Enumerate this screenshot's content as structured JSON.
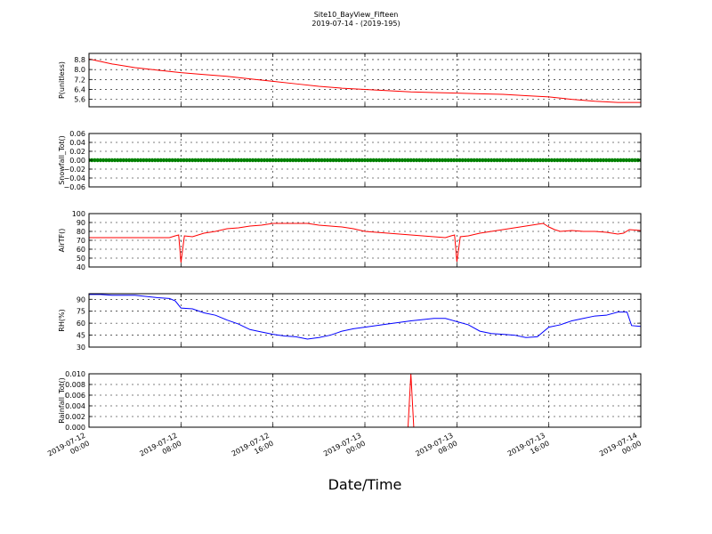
{
  "figure": {
    "title": "Site10_BayView_Fifteen",
    "subtitle": "2019-07-14 - (2019-195)",
    "xlabel": "Date/Time"
  },
  "x_ticks": [
    {
      "line1": "2019-07-12",
      "line2": "00:00",
      "hours": 0
    },
    {
      "line1": "2019-07-12",
      "line2": "08:00",
      "hours": 8
    },
    {
      "line1": "2019-07-12",
      "line2": "16:00",
      "hours": 16
    },
    {
      "line1": "2019-07-13",
      "line2": "00:00",
      "hours": 24
    },
    {
      "line1": "2019-07-13",
      "line2": "08:00",
      "hours": 32
    },
    {
      "line1": "2019-07-13",
      "line2": "16:00",
      "hours": 40
    },
    {
      "line1": "2019-07-14",
      "line2": "00:00",
      "hours": 48
    }
  ],
  "chart_data": [
    {
      "type": "line",
      "ylabel": "P(unitless)",
      "ylim": [
        5.0,
        9.3
      ],
      "yticks": [
        5.6,
        6.4,
        7.2,
        8.0,
        8.8
      ],
      "ytick_labels": [
        "5.6",
        "6.4",
        "7.2",
        "8.0",
        "8.8"
      ],
      "grid": true,
      "color": "#ff0000",
      "points": [
        [
          0,
          8.85
        ],
        [
          2,
          8.45
        ],
        [
          4,
          8.15
        ],
        [
          6,
          7.95
        ],
        [
          8,
          7.75
        ],
        [
          10,
          7.6
        ],
        [
          12,
          7.45
        ],
        [
          14,
          7.25
        ],
        [
          16,
          7.05
        ],
        [
          18,
          6.85
        ],
        [
          20,
          6.65
        ],
        [
          22,
          6.5
        ],
        [
          24,
          6.4
        ],
        [
          26,
          6.3
        ],
        [
          28,
          6.2
        ],
        [
          30,
          6.15
        ],
        [
          32,
          6.1
        ],
        [
          34,
          6.05
        ],
        [
          36,
          6.0
        ],
        [
          38,
          5.9
        ],
        [
          40,
          5.8
        ],
        [
          42,
          5.6
        ],
        [
          44,
          5.45
        ],
        [
          46,
          5.35
        ],
        [
          48,
          5.35
        ]
      ]
    },
    {
      "type": "scatter",
      "ylabel": "Snowfall_Tot()",
      "ylim": [
        -0.06,
        0.06
      ],
      "yticks": [
        -0.06,
        -0.04,
        -0.02,
        0.0,
        0.02,
        0.04,
        0.06
      ],
      "ytick_labels": [
        "−0.06",
        "−0.04",
        "−0.02",
        "0.00",
        "0.02",
        "0.04",
        "0.06"
      ],
      "grid": true,
      "color": "#008000",
      "constant_value": 0.0,
      "x_range": [
        0,
        48
      ]
    },
    {
      "type": "line",
      "ylabel": "AirTF()",
      "ylim": [
        40,
        100
      ],
      "yticks": [
        40,
        50,
        60,
        70,
        80,
        90,
        100
      ],
      "ytick_labels": [
        "40",
        "50",
        "60",
        "70",
        "80",
        "90",
        "100"
      ],
      "grid": true,
      "color": "#ff0000",
      "points": [
        [
          0,
          73
        ],
        [
          2,
          73
        ],
        [
          4,
          73
        ],
        [
          6,
          73
        ],
        [
          7,
          73
        ],
        [
          7.5,
          75
        ],
        [
          7.8,
          76
        ],
        [
          8.0,
          45
        ],
        [
          8.3,
          75
        ],
        [
          9,
          74
        ],
        [
          10,
          78
        ],
        [
          11,
          80
        ],
        [
          12,
          83
        ],
        [
          13,
          84
        ],
        [
          14,
          86
        ],
        [
          15,
          87
        ],
        [
          16,
          89
        ],
        [
          17,
          89
        ],
        [
          18,
          89
        ],
        [
          19,
          89
        ],
        [
          20,
          87
        ],
        [
          21,
          86
        ],
        [
          22,
          85
        ],
        [
          23,
          83
        ],
        [
          24,
          80
        ],
        [
          26,
          78
        ],
        [
          28,
          76
        ],
        [
          30,
          74
        ],
        [
          31,
          73
        ],
        [
          31.5,
          75
        ],
        [
          31.8,
          76
        ],
        [
          32.0,
          46
        ],
        [
          32.3,
          74
        ],
        [
          33,
          75
        ],
        [
          34,
          78
        ],
        [
          35,
          80
        ],
        [
          36,
          82
        ],
        [
          37,
          84
        ],
        [
          38,
          86
        ],
        [
          39,
          88
        ],
        [
          39.5,
          89
        ],
        [
          40,
          85
        ],
        [
          40.5,
          82
        ],
        [
          41,
          80
        ],
        [
          42,
          81
        ],
        [
          43,
          80
        ],
        [
          44,
          80
        ],
        [
          45,
          79
        ],
        [
          46,
          77
        ],
        [
          46.5,
          78
        ],
        [
          47,
          82
        ],
        [
          48,
          81
        ]
      ]
    },
    {
      "type": "line",
      "ylabel": "RH(%)",
      "ylim": [
        30,
        97
      ],
      "yticks": [
        30,
        45,
        60,
        75,
        90
      ],
      "ytick_labels": [
        "30",
        "45",
        "60",
        "75",
        "90"
      ],
      "grid": true,
      "color": "#0000ff",
      "points": [
        [
          0,
          96
        ],
        [
          1,
          96
        ],
        [
          2,
          95
        ],
        [
          4,
          95
        ],
        [
          6,
          92
        ],
        [
          7,
          91
        ],
        [
          7.5,
          88
        ],
        [
          8,
          79
        ],
        [
          9,
          78
        ],
        [
          10,
          73
        ],
        [
          11,
          70
        ],
        [
          12,
          64
        ],
        [
          13,
          59
        ],
        [
          14,
          52
        ],
        [
          15,
          49
        ],
        [
          16,
          46
        ],
        [
          17,
          44
        ],
        [
          18,
          43
        ],
        [
          19,
          40
        ],
        [
          20,
          42
        ],
        [
          21,
          45
        ],
        [
          22,
          50
        ],
        [
          23,
          53
        ],
        [
          24,
          55
        ],
        [
          26,
          59
        ],
        [
          28,
          63
        ],
        [
          30,
          66
        ],
        [
          31,
          66
        ],
        [
          32,
          62
        ],
        [
          33,
          58
        ],
        [
          34,
          50
        ],
        [
          35,
          47
        ],
        [
          36,
          46
        ],
        [
          37,
          45
        ],
        [
          38,
          42
        ],
        [
          39,
          43
        ],
        [
          40,
          55
        ],
        [
          41,
          58
        ],
        [
          42,
          63
        ],
        [
          43,
          66
        ],
        [
          44,
          69
        ],
        [
          45,
          70
        ],
        [
          46,
          74
        ],
        [
          46.8,
          74
        ],
        [
          47.2,
          57
        ],
        [
          48,
          56
        ]
      ]
    },
    {
      "type": "line",
      "ylabel": "Rainfall_Tot()",
      "ylim": [
        0.0,
        0.01
      ],
      "yticks": [
        0.0,
        0.002,
        0.004,
        0.006,
        0.008,
        0.01
      ],
      "ytick_labels": [
        "0.000",
        "0.002",
        "0.004",
        "0.006",
        "0.008",
        "0.010"
      ],
      "grid": true,
      "color": "#ff0000",
      "points": [
        [
          0,
          0
        ],
        [
          27.75,
          0
        ],
        [
          28.0,
          0.01
        ],
        [
          28.25,
          0
        ],
        [
          48,
          0
        ]
      ]
    }
  ]
}
